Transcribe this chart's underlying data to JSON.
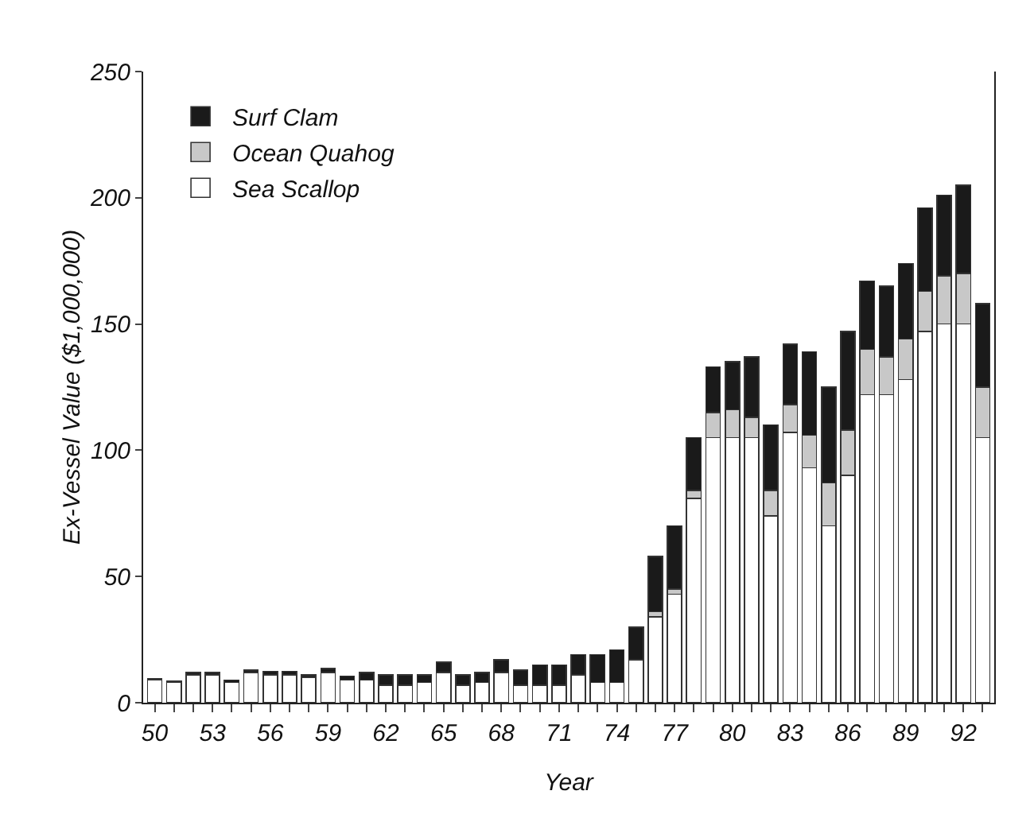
{
  "chart_data": {
    "type": "bar",
    "stacked": true,
    "xlabel": "Year",
    "ylabel": "Ex-Vessel Value ($1,000,000)",
    "categories": [
      "50",
      null,
      null,
      "53",
      null,
      null,
      "56",
      null,
      null,
      "59",
      null,
      null,
      "62",
      null,
      null,
      "65",
      null,
      null,
      "68",
      null,
      null,
      "71",
      null,
      null,
      "74",
      null,
      null,
      "77",
      null,
      null,
      "80",
      null,
      null,
      "83",
      null,
      null,
      "86",
      null,
      null,
      "89",
      null,
      null,
      "92",
      null
    ],
    "series": [
      {
        "name": "Sea Scallop",
        "color": "#ffffff",
        "values": [
          9,
          8,
          11,
          11,
          8,
          12,
          11,
          11,
          10,
          12,
          9,
          9,
          7,
          7,
          8,
          12,
          7,
          8,
          12,
          7,
          7,
          7,
          11,
          8,
          8,
          17,
          34,
          43,
          81,
          105,
          105,
          105,
          74,
          107,
          93,
          70,
          90,
          122,
          122,
          128,
          147,
          150,
          150,
          105
        ]
      },
      {
        "name": "Ocean Quahog",
        "color": "#c8c8c8",
        "values": [
          null,
          null,
          null,
          null,
          null,
          null,
          null,
          null,
          null,
          null,
          null,
          null,
          null,
          null,
          null,
          null,
          null,
          null,
          null,
          null,
          null,
          null,
          null,
          null,
          null,
          null,
          2,
          2,
          3,
          10,
          11,
          8,
          10,
          11,
          13,
          17,
          18,
          18,
          15,
          16,
          16,
          19,
          20,
          20
        ]
      },
      {
        "name": "Surf Clam",
        "color": "#1a1a1a",
        "values": [
          0.5,
          0.5,
          1,
          1,
          1,
          1,
          1.5,
          1.5,
          1,
          1.5,
          1.5,
          3,
          4,
          4,
          3,
          4,
          4,
          4,
          5,
          6,
          8,
          8,
          8,
          11,
          13,
          13,
          22,
          25,
          21,
          18,
          19,
          24,
          26,
          24,
          33,
          38,
          39,
          27,
          28,
          30,
          33,
          32,
          35,
          33
        ]
      }
    ],
    "ylim": [
      0,
      250
    ],
    "yticks": [
      0,
      50,
      100,
      150,
      200,
      250
    ],
    "grid": false,
    "legend": "top left"
  }
}
